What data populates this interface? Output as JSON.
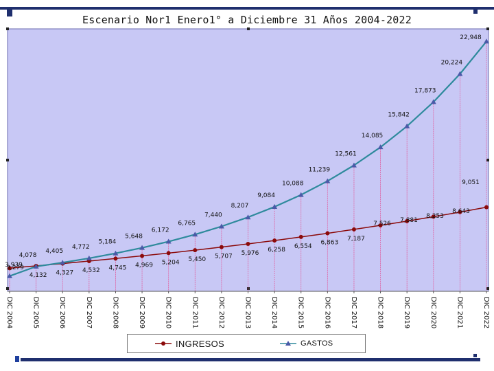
{
  "chart_data": {
    "type": "line",
    "title": "Escenario Nor1 Enero1° a Diciembre 31 Años 2004-2022",
    "xlabel": "",
    "ylabel": "",
    "categories": [
      "DIC 2004",
      "DIC 2005",
      "DIC 2006",
      "DIC 2007",
      "DIC 2008",
      "DIC 2009",
      "DIC 2010",
      "DIC 2011",
      "DIC 2012",
      "DIC 2013",
      "DIC 2014",
      "DIC 2015",
      "DIC 2016",
      "DIC 2017",
      "DIC 2018",
      "DIC 2019",
      "DIC 2020",
      "DIC 2021",
      "DIC 2022"
    ],
    "series": [
      {
        "name": "INGRESOS",
        "color": "#8b0a0a",
        "marker": "circle",
        "values": [
          3939,
          4132,
          4327,
          4532,
          4745,
          4969,
          5204,
          5450,
          5707,
          5976,
          6258,
          6554,
          6863,
          7187,
          7526,
          7881,
          8253,
          8643,
          9051
        ],
        "labels": [
          "3,939",
          "4,132",
          "4,327",
          "4,532",
          "4,745",
          "4,969",
          "5,204",
          "5,450",
          "5,707",
          "5,976",
          "6,258",
          "6,554",
          "6,863",
          "7,187",
          "7,526",
          "7,881",
          "8,253",
          "8,643",
          "9,051"
        ]
      },
      {
        "name": "GASTOS",
        "color": "#2e8a9c",
        "marker": "triangle",
        "values": [
          3279,
          4078,
          4405,
          4772,
          5184,
          5648,
          6172,
          6765,
          7440,
          8207,
          9084,
          10088,
          11239,
          12561,
          14085,
          15842,
          17873,
          20224,
          22948
        ],
        "labels": [
          "3,279",
          "4,078",
          "4,405",
          "4,772",
          "5,184",
          "5,648",
          "6,172",
          "6,765",
          "7,440",
          "8,207",
          "9,084",
          "10,088",
          "11,239",
          "12,561",
          "14,085",
          "15,842",
          "17,873",
          "20,224",
          "22,948"
        ]
      }
    ],
    "ylim": [
      2000,
      24000
    ],
    "grid": false,
    "drop_lines": true,
    "legend_position": "bottom",
    "plot_background": "#c8c8f5"
  }
}
